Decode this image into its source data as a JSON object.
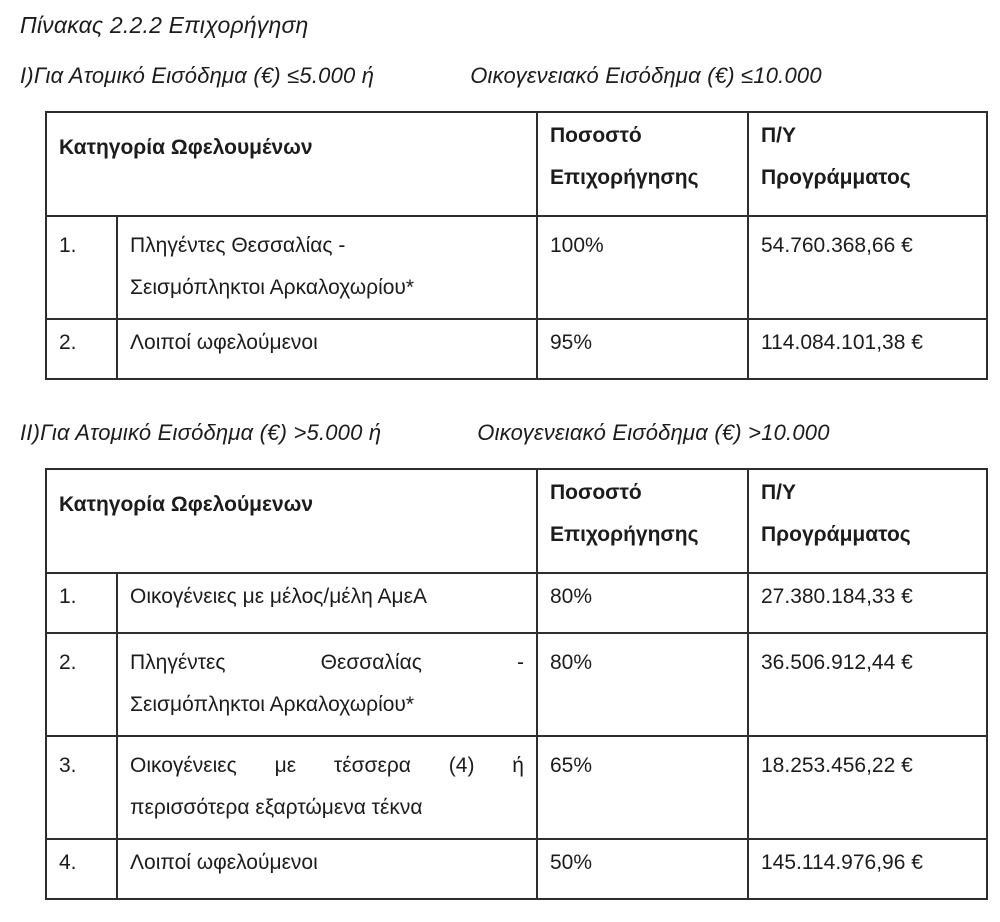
{
  "document": {
    "title": "Πίνακας 2.2.2 Επιχορήγηση"
  },
  "colors": {
    "text": "#1c1c1c",
    "border": "#2e2e2e",
    "background": "#ffffff"
  },
  "sections": [
    {
      "id": "income-low",
      "heading": {
        "left": "I)Για Ατομικό Εισόδημα (€) ≤5.000 ή",
        "right": "Οικογενειακό Εισόδημα (€) ≤10.000"
      },
      "table": {
        "headers": {
          "category": "Κατηγορία Ωφελουμένων",
          "percentage_lines": [
            "Ποσοστό",
            "Επιχορήγησης"
          ],
          "budget_lines": [
            "Π/Υ",
            "Προγράμματος"
          ]
        },
        "rows": [
          {
            "num": "1.",
            "category_lines": [
              {
                "justify": false,
                "tokens": [
                  "Πληγέντες Θεσσαλίας -"
                ]
              },
              {
                "justify": false,
                "tokens": [
                  "Σεισμόπληκτοι Αρκαλοχωρίου*"
                ]
              }
            ],
            "percentage": "100%",
            "budget": "54.760.368,66 €"
          },
          {
            "num": "2.",
            "category_lines": [
              {
                "justify": false,
                "tokens": [
                  "Λοιποί ωφελούμενοι"
                ]
              }
            ],
            "percentage": "95%",
            "budget": "114.084.101,38 €"
          }
        ]
      }
    },
    {
      "id": "income-high",
      "heading": {
        "left": "II)Για Ατομικό Εισόδημα (€) >5.000 ή",
        "right": "Οικογενειακό Εισόδημα (€) >10.000"
      },
      "table": {
        "headers": {
          "category": "Κατηγορία Ωφελούμενων",
          "percentage_lines": [
            "Ποσοστό",
            "Επιχορήγησης"
          ],
          "budget_lines": [
            "Π/Υ",
            "Προγράμματος"
          ]
        },
        "rows": [
          {
            "num": "1.",
            "category_lines": [
              {
                "justify": false,
                "tokens": [
                  "Οικογένειες με μέλος/μέλη ΑμεΑ"
                ]
              }
            ],
            "percentage": "80%",
            "budget": "27.380.184,33 €"
          },
          {
            "num": "2.",
            "category_lines": [
              {
                "justify": true,
                "tokens": [
                  "Πληγέντες",
                  "Θεσσαλίας",
                  "-"
                ]
              },
              {
                "justify": false,
                "tokens": [
                  "Σεισμόπληκτοι Αρκαλοχωρίου*"
                ]
              }
            ],
            "percentage": "80%",
            "budget": "36.506.912,44 €"
          },
          {
            "num": "3.",
            "category_lines": [
              {
                "justify": true,
                "tokens": [
                  "Οικογένειες",
                  "με",
                  "τέσσερα",
                  "(4)",
                  "ή"
                ]
              },
              {
                "justify": false,
                "tokens": [
                  "περισσότερα εξαρτώμενα τέκνα"
                ]
              }
            ],
            "percentage": "65%",
            "budget": "18.253.456,22 €"
          },
          {
            "num": "4.",
            "category_lines": [
              {
                "justify": false,
                "tokens": [
                  "Λοιποί ωφελούμενοι"
                ]
              }
            ],
            "percentage": "50%",
            "budget": "145.114.976,96 €"
          }
        ]
      }
    }
  ]
}
